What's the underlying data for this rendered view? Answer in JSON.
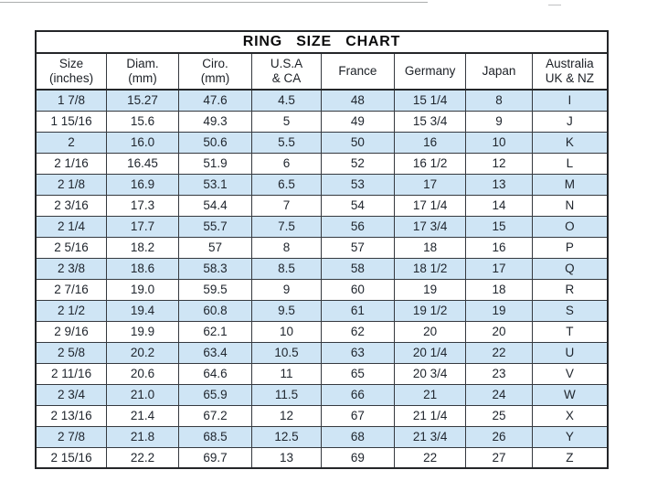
{
  "title": "RING SIZE CHART",
  "colors": {
    "row_alt": "#cfe5f5",
    "grid_border": "#35393f",
    "outer_border": "#242629",
    "text": "#20262e",
    "background": "#ffffff"
  },
  "chart_data": {
    "type": "table",
    "title": "RING SIZE CHART",
    "layout": {
      "striped": true,
      "first_data_row_shaded": true,
      "grid": true
    },
    "columns": [
      {
        "line1": "Size",
        "line2": "(inches)"
      },
      {
        "line1": "Diam.",
        "line2": "(mm)"
      },
      {
        "line1": "Ciro.",
        "line2": "(mm)"
      },
      {
        "line1": "U.S.A",
        "line2": "& CA"
      },
      {
        "line1": "France",
        "line2": ""
      },
      {
        "line1": "Germany",
        "line2": ""
      },
      {
        "line1": "Japan",
        "line2": ""
      },
      {
        "line1": "Australia",
        "line2": "UK & NZ"
      }
    ],
    "rows": [
      [
        "1 7/8",
        "15.27",
        "47.6",
        "4.5",
        "48",
        "15 1/4",
        "8",
        "I"
      ],
      [
        "1 15/16",
        "15.6",
        "49.3",
        "5",
        "49",
        "15 3/4",
        "9",
        "J"
      ],
      [
        "2",
        "16.0",
        "50.6",
        "5.5",
        "50",
        "16",
        "10",
        "K"
      ],
      [
        "2 1/16",
        "16.45",
        "51.9",
        "6",
        "52",
        "16 1/2",
        "12",
        "L"
      ],
      [
        "2 1/8",
        "16.9",
        "53.1",
        "6.5",
        "53",
        "17",
        "13",
        "M"
      ],
      [
        "2 3/16",
        "17.3",
        "54.4",
        "7",
        "54",
        "17 1/4",
        "14",
        "N"
      ],
      [
        "2 1/4",
        "17.7",
        "55.7",
        "7.5",
        "56",
        "17 3/4",
        "15",
        "O"
      ],
      [
        "2 5/16",
        "18.2",
        "57",
        "8",
        "57",
        "18",
        "16",
        "P"
      ],
      [
        "2 3/8",
        "18.6",
        "58.3",
        "8.5",
        "58",
        "18 1/2",
        "17",
        "Q"
      ],
      [
        "2 7/16",
        "19.0",
        "59.5",
        "9",
        "60",
        "19",
        "18",
        "R"
      ],
      [
        "2 1/2",
        "19.4",
        "60.8",
        "9.5",
        "61",
        "19 1/2",
        "19",
        "S"
      ],
      [
        "2 9/16",
        "19.9",
        "62.1",
        "10",
        "62",
        "20",
        "20",
        "T"
      ],
      [
        "2 5/8",
        "20.2",
        "63.4",
        "10.5",
        "63",
        "20 1/4",
        "22",
        "U"
      ],
      [
        "2 11/16",
        "20.6",
        "64.6",
        "11",
        "65",
        "20 3/4",
        "23",
        "V"
      ],
      [
        "2 3/4",
        "21.0",
        "65.9",
        "11.5",
        "66",
        "21",
        "24",
        "W"
      ],
      [
        "2 13/16",
        "21.4",
        "67.2",
        "12",
        "67",
        "21 1/4",
        "25",
        "X"
      ],
      [
        "2 7/8",
        "21.8",
        "68.5",
        "12.5",
        "68",
        "21 3/4",
        "26",
        "Y"
      ],
      [
        "2 15/16",
        "22.2",
        "69.7",
        "13",
        "69",
        "22",
        "27",
        "Z"
      ]
    ]
  }
}
